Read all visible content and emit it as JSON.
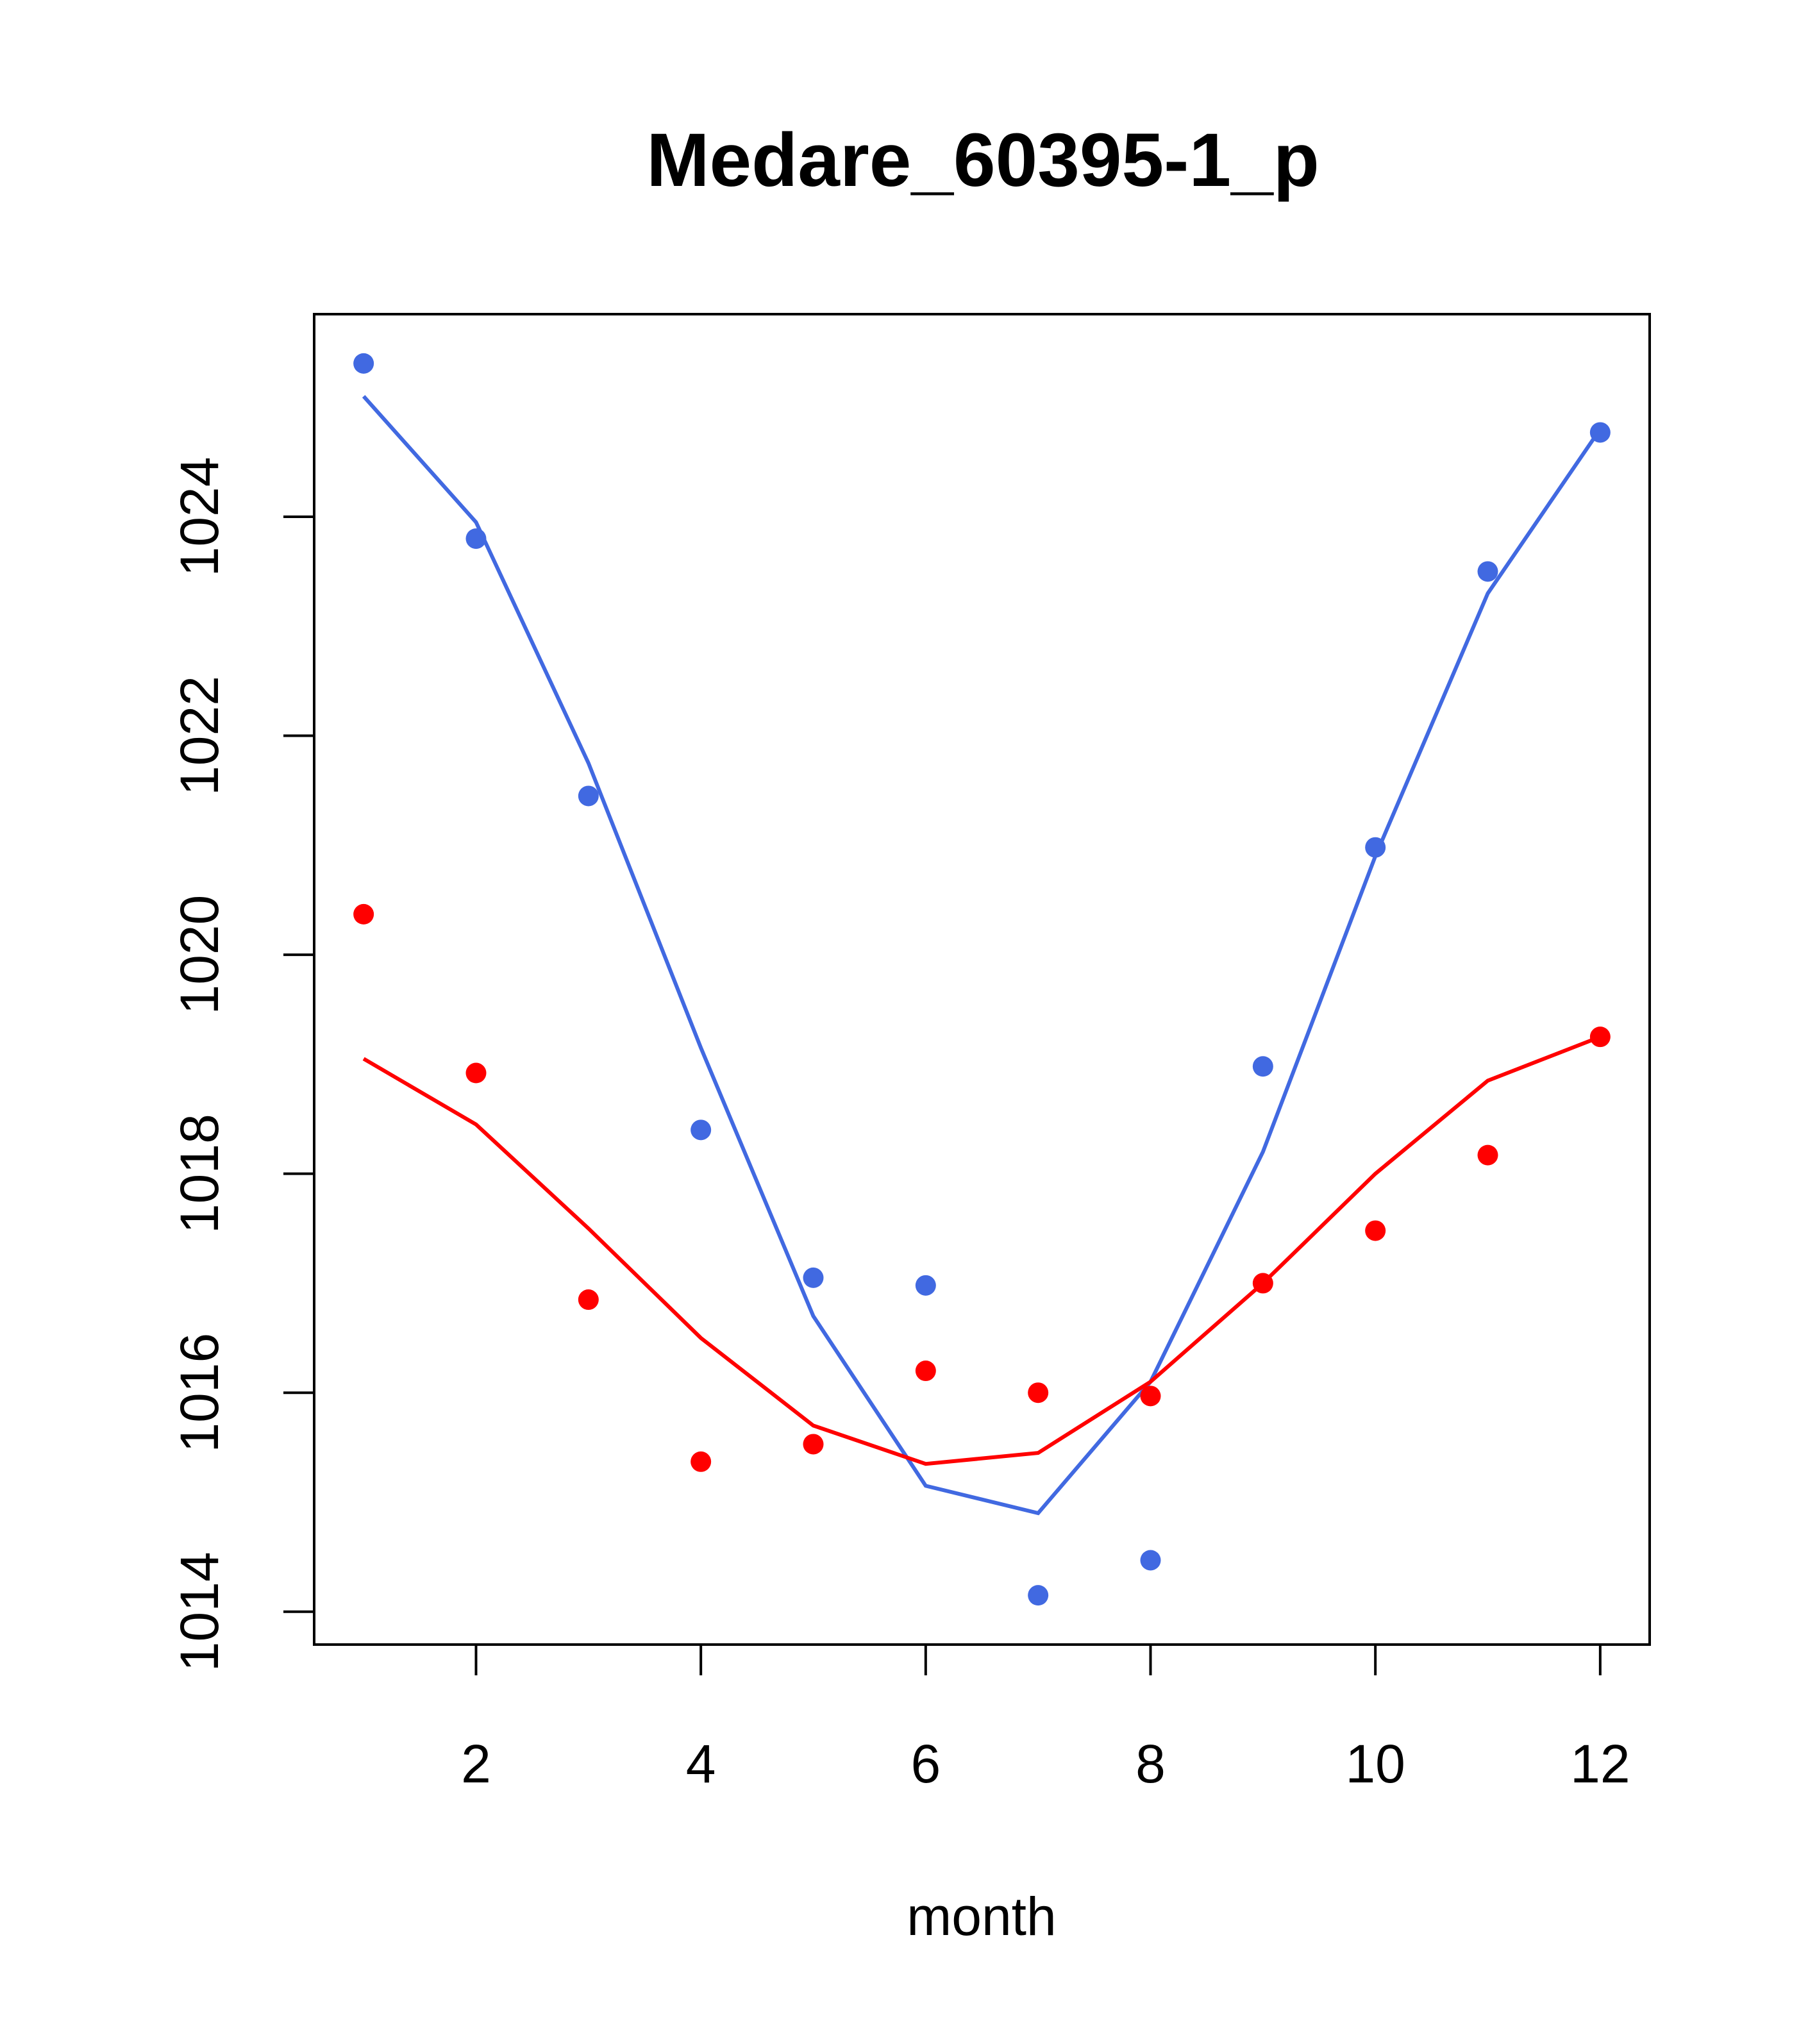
{
  "chart_data": {
    "type": "scatter",
    "title": "Medare_60395-1_p",
    "xlabel": "month",
    "ylabel": "",
    "xlim": [
      0.56,
      12.44
    ],
    "ylim": [
      1013.7,
      1025.85
    ],
    "x_ticks": [
      2,
      4,
      6,
      8,
      10,
      12
    ],
    "y_ticks": [
      1014,
      1016,
      1018,
      1020,
      1022,
      1024
    ],
    "series": [
      {
        "name": "blue",
        "color": "#4169E1",
        "x": [
          1,
          2,
          3,
          4,
          5,
          6,
          7,
          8,
          9,
          10,
          11,
          12
        ],
        "points": [
          1025.4,
          1023.8,
          1021.45,
          1018.4,
          1017.05,
          1016.98,
          1014.15,
          1014.47,
          1018.98,
          1020.98,
          1023.5,
          1024.77
        ],
        "fit": [
          1025.1,
          1023.95,
          1021.75,
          1019.15,
          1016.7,
          1015.15,
          1014.9,
          1016.1,
          1018.2,
          1020.9,
          1023.3,
          1024.8
        ]
      },
      {
        "name": "red",
        "color": "#FF0000",
        "x": [
          1,
          2,
          3,
          4,
          5,
          6,
          7,
          8,
          9,
          10,
          11,
          12
        ],
        "points": [
          1020.37,
          1018.92,
          1016.85,
          1015.37,
          1015.53,
          1016.2,
          1016.0,
          1015.97,
          1017.0,
          1017.48,
          1018.17,
          1019.25
        ],
        "fit": [
          1019.05,
          1018.45,
          1017.5,
          1016.5,
          1015.7,
          1015.35,
          1015.45,
          1016.1,
          1017.0,
          1018.0,
          1018.85,
          1019.25
        ]
      }
    ]
  }
}
